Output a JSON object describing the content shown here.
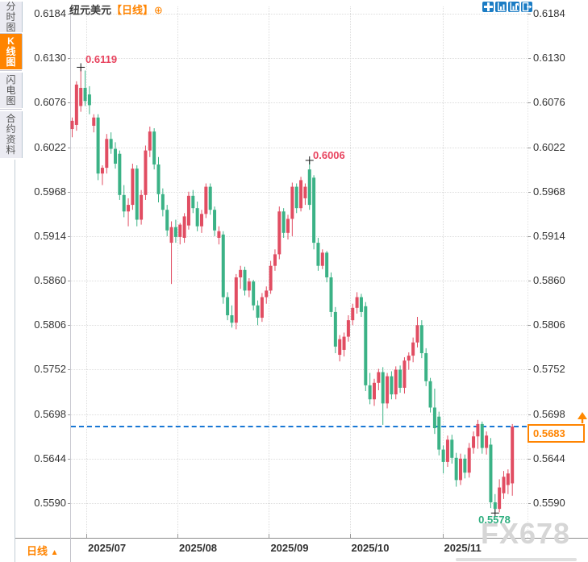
{
  "header": {
    "symbol": "纽元美元",
    "period_tag": "【日线】",
    "add_button": "⊕"
  },
  "toolbar": {
    "buttons": [
      {
        "key": "move",
        "icon": "move-tool-icon"
      },
      {
        "key": "axis-zoom",
        "icon": "axis-zoom-icon"
      },
      {
        "key": "bar-zoom",
        "icon": "bar-zoom-icon"
      },
      {
        "key": "exit",
        "icon": "exit-icon"
      }
    ]
  },
  "sidebar": {
    "items": [
      {
        "key": "time-chart",
        "label": "分时图",
        "active": false
      },
      {
        "key": "kline-chart",
        "label": "K线图",
        "active": true
      },
      {
        "key": "lightning-chart",
        "label": "闪电图",
        "active": false
      },
      {
        "key": "contract-info",
        "label": "合约资料",
        "active": false
      }
    ]
  },
  "footer": {
    "period_label": "日线",
    "period_arrow": "▲"
  },
  "watermark": "FX678",
  "colors": {
    "up_red": "#e14d62",
    "down_green": "#3bb286",
    "accent_orange": "#ff8400",
    "icon_blue": "#1b7cc4",
    "ref_line_blue": "#1877d4",
    "annotation_red": "#e8445f",
    "annotation_green": "#2fae7f",
    "watermark_gray": "#d6d6d6"
  },
  "chart_data": {
    "type": "candlestick",
    "symbol": "纽元美元",
    "interval": "日线",
    "grid": true,
    "y_ticks": [
      "0.6184",
      "0.6130",
      "0.6076",
      "0.6022",
      "0.5968",
      "0.5914",
      "0.5860",
      "0.5806",
      "0.5752",
      "0.5698",
      "0.5644",
      "0.5590"
    ],
    "x_labels": [
      "2025/07",
      "2025/08",
      "2025/09",
      "2025/10",
      "2025/11"
    ],
    "x_label_candle_idx": [
      3.3,
      24.4,
      45.6,
      64.3,
      85.8
    ],
    "current_price": {
      "label": "0.5683",
      "value": 0.5683
    },
    "reference_line": {
      "price": 0.5683,
      "style": "dashed"
    },
    "annotations": [
      {
        "type": "high",
        "candle": 2,
        "price": 0.6119,
        "label": "0.6119"
      },
      {
        "type": "high",
        "candle": 55,
        "price": 0.6006,
        "label": "0.6006"
      },
      {
        "type": "low",
        "candle": 98,
        "price": 0.5578,
        "label": "0.5578"
      }
    ],
    "ohlc": [
      [
        0.6044,
        0.6058,
        0.6034,
        0.6054
      ],
      [
        0.6049,
        0.6102,
        0.6042,
        0.6098
      ],
      [
        0.6072,
        0.6119,
        0.6065,
        0.6094
      ],
      [
        0.6094,
        0.6115,
        0.6072,
        0.6078
      ],
      [
        0.6086,
        0.6096,
        0.6062,
        0.6073
      ],
      [
        0.6048,
        0.6062,
        0.604,
        0.6058
      ],
      [
        0.6058,
        0.6062,
        0.5982,
        0.599
      ],
      [
        0.599,
        0.6,
        0.5976,
        0.5997
      ],
      [
        0.5997,
        0.6038,
        0.599,
        0.6032
      ],
      [
        0.6032,
        0.604,
        0.6014,
        0.602
      ],
      [
        0.602,
        0.6028,
        0.5996,
        0.6002
      ],
      [
        0.6014,
        0.6018,
        0.5958,
        0.5964
      ],
      [
        0.5964,
        0.5976,
        0.5937,
        0.5944
      ],
      [
        0.5944,
        0.596,
        0.5926,
        0.5952
      ],
      [
        0.5952,
        0.6002,
        0.5946,
        0.5996
      ],
      [
        0.5996,
        0.6,
        0.5926,
        0.5934
      ],
      [
        0.5934,
        0.597,
        0.5928,
        0.5964
      ],
      [
        0.5964,
        0.6024,
        0.5958,
        0.6018
      ],
      [
        0.6018,
        0.6047,
        0.601,
        0.6041
      ],
      [
        0.6041,
        0.6045,
        0.5995,
        0.6001
      ],
      [
        0.6001,
        0.601,
        0.5955,
        0.5965
      ],
      [
        0.5965,
        0.5972,
        0.5938,
        0.5946
      ],
      [
        0.5946,
        0.5952,
        0.5914,
        0.5921
      ],
      [
        0.5906,
        0.5932,
        0.5856,
        0.5925
      ],
      [
        0.5925,
        0.5934,
        0.5906,
        0.5913
      ],
      [
        0.5913,
        0.593,
        0.5904,
        0.5928
      ],
      [
        0.5912,
        0.5942,
        0.5906,
        0.5938
      ],
      [
        0.5927,
        0.5968,
        0.5922,
        0.5963
      ],
      [
        0.5963,
        0.597,
        0.5942,
        0.5948
      ],
      [
        0.5948,
        0.5956,
        0.592,
        0.5926
      ],
      [
        0.5926,
        0.5946,
        0.5918,
        0.5941
      ],
      [
        0.5941,
        0.5978,
        0.5936,
        0.5974
      ],
      [
        0.5974,
        0.5978,
        0.594,
        0.5946
      ],
      [
        0.5946,
        0.595,
        0.5914,
        0.5921
      ],
      [
        0.5912,
        0.5926,
        0.5904,
        0.592
      ],
      [
        0.5916,
        0.592,
        0.5832,
        0.584
      ],
      [
        0.584,
        0.5846,
        0.5812,
        0.5818
      ],
      [
        0.5818,
        0.583,
        0.5803,
        0.5809
      ],
      [
        0.5809,
        0.5868,
        0.5801,
        0.5864
      ],
      [
        0.5864,
        0.5878,
        0.585,
        0.5873
      ],
      [
        0.5873,
        0.5877,
        0.5842,
        0.5848
      ],
      [
        0.5848,
        0.5863,
        0.584,
        0.5859
      ],
      [
        0.5859,
        0.5861,
        0.5824,
        0.583
      ],
      [
        0.583,
        0.5836,
        0.5806,
        0.5815
      ],
      [
        0.5815,
        0.5845,
        0.581,
        0.584
      ],
      [
        0.584,
        0.5853,
        0.5832,
        0.5848
      ],
      [
        0.5848,
        0.5884,
        0.5844,
        0.5878
      ],
      [
        0.5878,
        0.5898,
        0.5872,
        0.5892
      ],
      [
        0.5892,
        0.595,
        0.5886,
        0.5944
      ],
      [
        0.5944,
        0.5948,
        0.5912,
        0.5918
      ],
      [
        0.5918,
        0.594,
        0.591,
        0.5935
      ],
      [
        0.5935,
        0.5979,
        0.5914,
        0.5974
      ],
      [
        0.5974,
        0.5978,
        0.5942,
        0.5948
      ],
      [
        0.5948,
        0.5986,
        0.5944,
        0.5982
      ],
      [
        0.596,
        0.5978,
        0.5952,
        0.5974
      ],
      [
        0.5995,
        0.6006,
        0.5946,
        0.5952
      ],
      [
        0.5985,
        0.5988,
        0.5898,
        0.5906
      ],
      [
        0.5906,
        0.5912,
        0.5872,
        0.5878
      ],
      [
        0.5878,
        0.5898,
        0.5874,
        0.5894
      ],
      [
        0.5894,
        0.5896,
        0.5858,
        0.5864
      ],
      [
        0.5864,
        0.587,
        0.5816,
        0.5822
      ],
      [
        0.5822,
        0.5828,
        0.5772,
        0.578
      ],
      [
        0.577,
        0.5794,
        0.5762,
        0.5789
      ],
      [
        0.5776,
        0.5797,
        0.5768,
        0.5792
      ],
      [
        0.5792,
        0.5818,
        0.5786,
        0.5812
      ],
      [
        0.5812,
        0.5832,
        0.5806,
        0.5827
      ],
      [
        0.5827,
        0.5846,
        0.582,
        0.584
      ],
      [
        0.584,
        0.5844,
        0.5816,
        0.5822
      ],
      [
        0.5829,
        0.5834,
        0.5726,
        0.5733
      ],
      [
        0.5733,
        0.5748,
        0.571,
        0.5716
      ],
      [
        0.5716,
        0.5741,
        0.5708,
        0.5736
      ],
      [
        0.5736,
        0.5753,
        0.5727,
        0.5749
      ],
      [
        0.5749,
        0.5755,
        0.5685,
        0.5711
      ],
      [
        0.5711,
        0.5748,
        0.5705,
        0.5744
      ],
      [
        0.5744,
        0.575,
        0.5716,
        0.5722
      ],
      [
        0.5722,
        0.5756,
        0.5716,
        0.5752
      ],
      [
        0.5752,
        0.5757,
        0.5724,
        0.573
      ],
      [
        0.573,
        0.5767,
        0.5723,
        0.5763
      ],
      [
        0.5763,
        0.5773,
        0.5752,
        0.5769
      ],
      [
        0.5769,
        0.5791,
        0.5761,
        0.5785
      ],
      [
        0.5785,
        0.5816,
        0.5779,
        0.5806
      ],
      [
        0.5806,
        0.5812,
        0.5766,
        0.5772
      ],
      [
        0.5772,
        0.5778,
        0.5732,
        0.5738
      ],
      [
        0.5738,
        0.5742,
        0.57,
        0.5706
      ],
      [
        0.5706,
        0.5729,
        0.5674,
        0.5681
      ],
      [
        0.5695,
        0.5701,
        0.5648,
        0.5655
      ],
      [
        0.5655,
        0.566,
        0.5626,
        0.564
      ],
      [
        0.564,
        0.5672,
        0.5634,
        0.5667
      ],
      [
        0.5667,
        0.5673,
        0.5638,
        0.5645
      ],
      [
        0.5645,
        0.5651,
        0.561,
        0.5618
      ],
      [
        0.5618,
        0.565,
        0.5612,
        0.5644
      ],
      [
        0.5644,
        0.5649,
        0.562,
        0.5627
      ],
      [
        0.5627,
        0.5663,
        0.5621,
        0.5657
      ],
      [
        0.5657,
        0.5677,
        0.565,
        0.5671
      ],
      [
        0.5671,
        0.5691,
        0.5656,
        0.5686
      ],
      [
        0.5686,
        0.5689,
        0.565,
        0.5657
      ],
      [
        0.5657,
        0.5677,
        0.5649,
        0.5672
      ],
      [
        0.5661,
        0.5669,
        0.5584,
        0.5591
      ],
      [
        0.5591,
        0.5601,
        0.5578,
        0.5583
      ],
      [
        0.5583,
        0.5619,
        0.5579,
        0.5609
      ],
      [
        0.5602,
        0.5629,
        0.5595,
        0.5622
      ],
      [
        0.5612,
        0.5631,
        0.5601,
        0.5626
      ],
      [
        0.5614,
        0.5686,
        0.5599,
        0.5683
      ]
    ]
  }
}
